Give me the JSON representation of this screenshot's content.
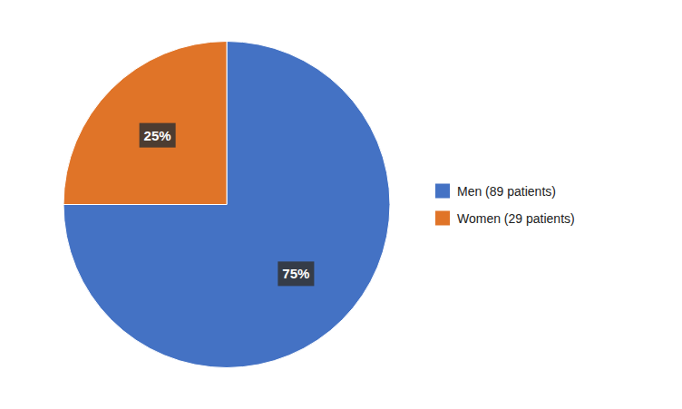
{
  "chart_data": {
    "type": "pie",
    "categories": [
      "Men (89 patients)",
      "Women (29 patients)"
    ],
    "values": [
      75,
      25
    ],
    "value_labels": [
      "75%",
      "25%"
    ],
    "colors": [
      "#4472C4",
      "#E07428"
    ],
    "data_labels": true,
    "legend": "right"
  }
}
